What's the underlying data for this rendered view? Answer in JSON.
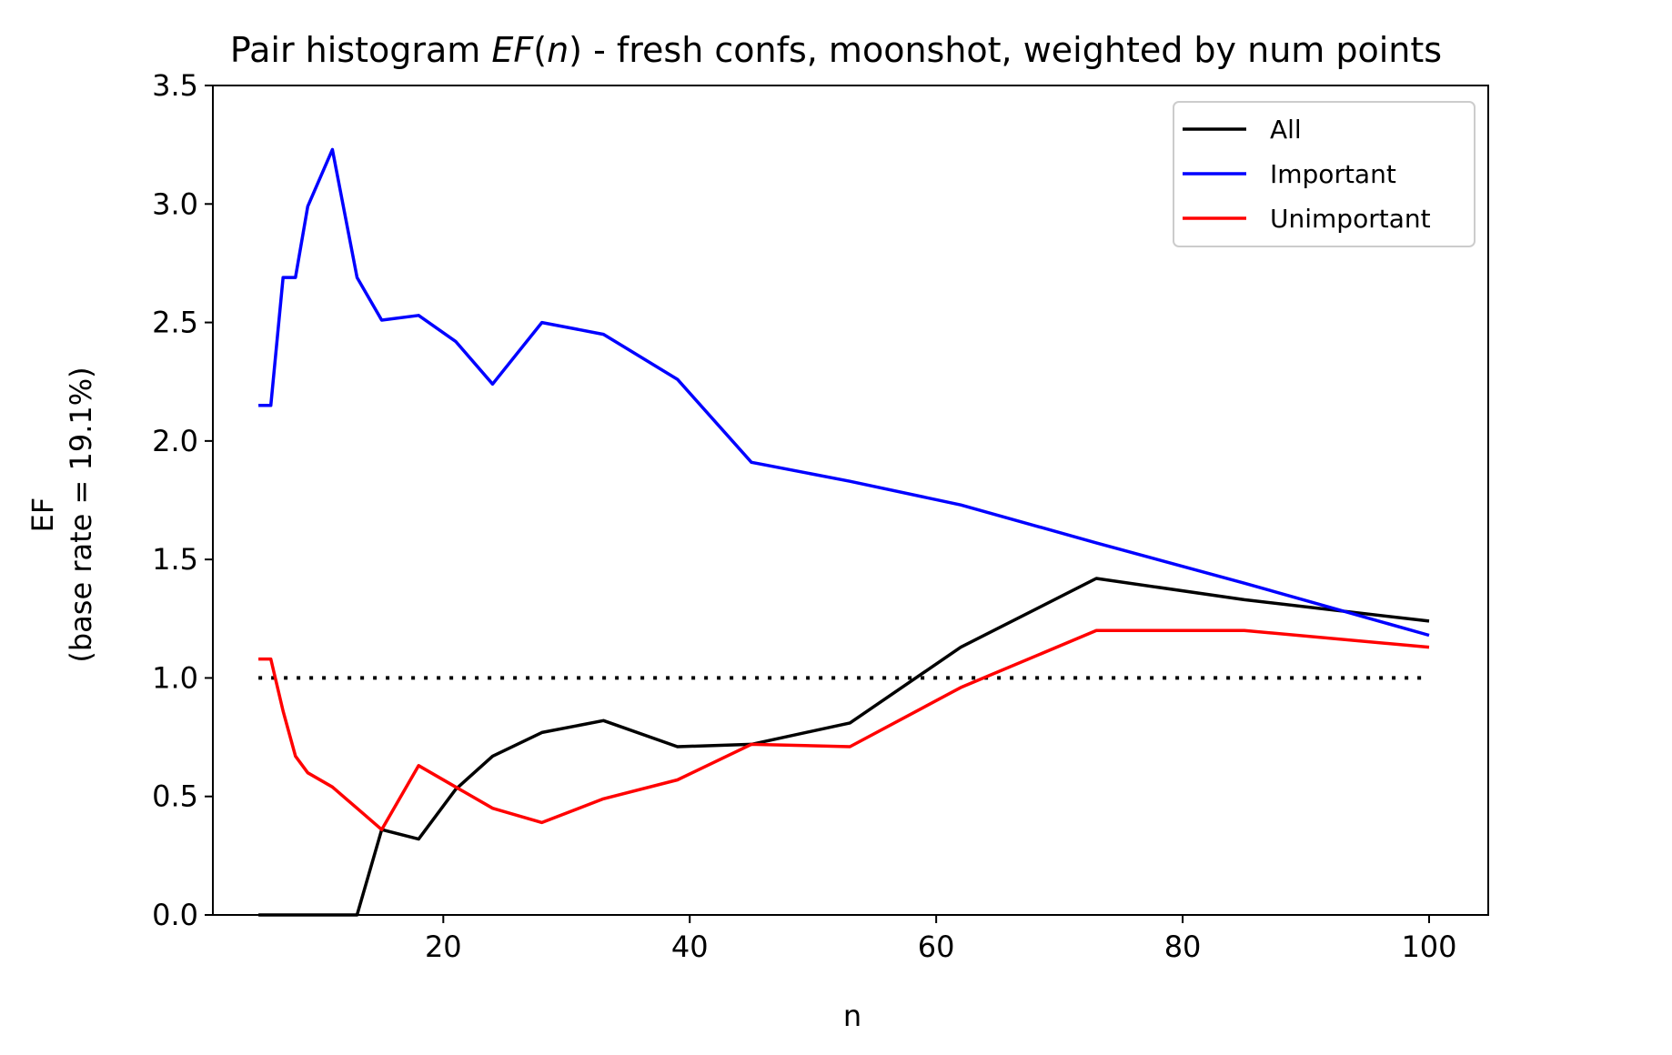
{
  "chart_data": {
    "type": "line",
    "title_prefix": "Pair histogram ",
    "title_func": "EF",
    "title_lparen": "(",
    "title_var": "n",
    "title_suffix": ") - fresh confs, moonshot, weighted by num points",
    "xlabel": "n",
    "ylabel_line1": "EF",
    "ylabel_line2": "(base rate = 19.1%)",
    "xlim": [
      1.3,
      104.8
    ],
    "ylim": [
      0,
      3.5
    ],
    "x_ticks": [
      20,
      40,
      60,
      80,
      100
    ],
    "x_tick_labels": [
      "20",
      "40",
      "60",
      "80",
      "100"
    ],
    "y_ticks": [
      0,
      0.5,
      1.0,
      1.5,
      2.0,
      2.5,
      3.0,
      3.5
    ],
    "y_tick_labels": [
      "0.0",
      "0.5",
      "1.0",
      "1.5",
      "2.0",
      "2.5",
      "3.0",
      "3.5"
    ],
    "grid": false,
    "legend_position": "top-right",
    "reference_line": {
      "y": 1.0,
      "x_range": [
        5,
        100
      ],
      "style": "dotted",
      "color": "#000000"
    },
    "series": [
      {
        "name": "All",
        "color": "#000000",
        "x": [
          5,
          6,
          7,
          8,
          9,
          11,
          13,
          15,
          18,
          21,
          24,
          28,
          33,
          39,
          45,
          53,
          62,
          73,
          85,
          100
        ],
        "y": [
          0,
          0,
          0,
          0,
          0,
          0,
          0,
          0.36,
          0.32,
          0.53,
          0.67,
          0.77,
          0.82,
          0.71,
          0.72,
          0.81,
          1.13,
          1.42,
          1.33,
          1.24
        ]
      },
      {
        "name": "Important",
        "color": "#0000ff",
        "x": [
          5,
          6,
          7,
          8,
          9,
          11,
          13,
          15,
          18,
          21,
          24,
          28,
          33,
          39,
          45,
          53,
          62,
          73,
          85,
          100
        ],
        "y": [
          2.15,
          2.15,
          2.69,
          2.69,
          2.99,
          3.23,
          2.69,
          2.51,
          2.53,
          2.42,
          2.24,
          2.5,
          2.45,
          2.26,
          1.91,
          1.83,
          1.73,
          1.57,
          1.4,
          1.18
        ]
      },
      {
        "name": "Unimportant",
        "color": "#ff0000",
        "x": [
          5,
          6,
          7,
          8,
          9,
          11,
          13,
          15,
          18,
          21,
          24,
          28,
          33,
          39,
          45,
          53,
          62,
          73,
          85,
          100
        ],
        "y": [
          1.08,
          1.08,
          0.86,
          0.67,
          0.6,
          0.54,
          0.45,
          0.36,
          0.63,
          0.54,
          0.45,
          0.39,
          0.49,
          0.57,
          0.72,
          0.71,
          0.96,
          1.2,
          1.2,
          1.13
        ]
      }
    ]
  }
}
